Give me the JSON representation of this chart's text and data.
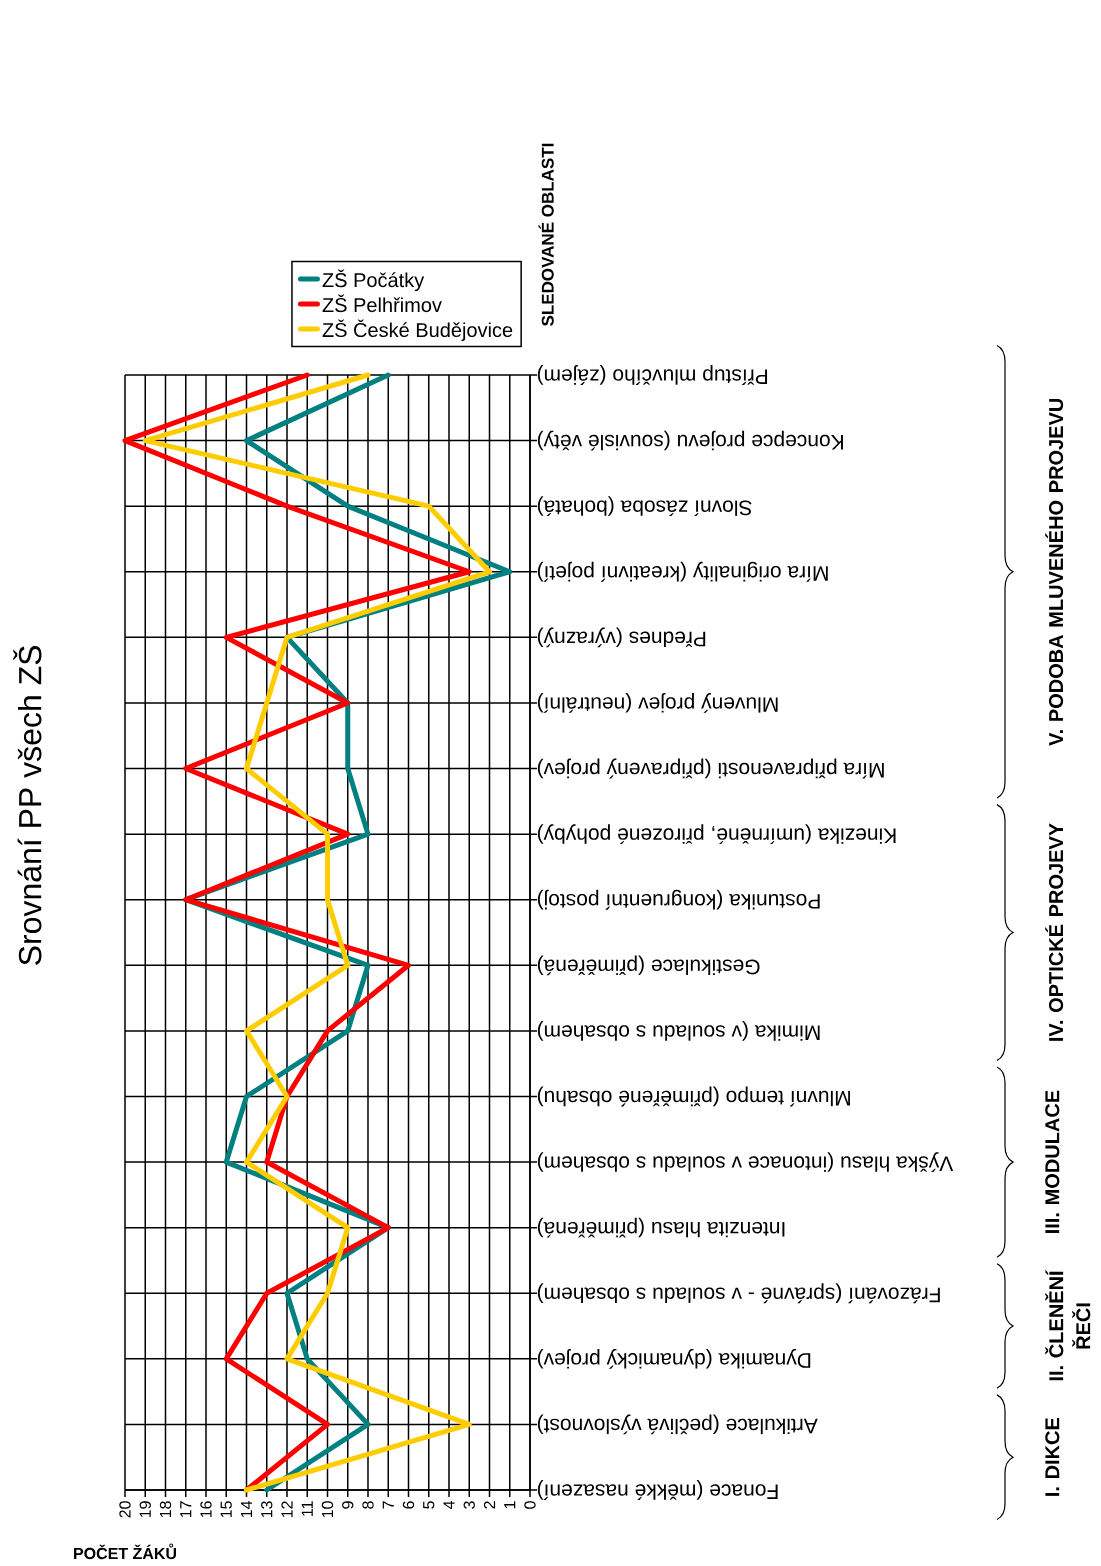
{
  "chart_data": {
    "type": "line",
    "orientation": "horizontal",
    "title": "Srovnání PP všech ZŠ",
    "xlabel": "POČET ŽÁKŮ",
    "ylabel": "SLEDOVANÉ OBLASTI",
    "categories": [
      "Přístup mluvčího (zájem)",
      "Koncepce projevu (souvislé věty)",
      "Slovní zásoba (bohatá)",
      "Míra originality (kreativní pojetí)",
      "Přednes (výrazný)",
      "Mluvený projev (neutrální)",
      "Míra připravenosti (připravený projev)",
      "Kinezika (umírněné, přirozené pohyby)",
      "Postunika (kongruentní postoj)",
      "Gestikulace (přiměřená)",
      "Mimika (v souladu s obsahem)",
      "Mluvní tempo (přiměřené obsahu)",
      "Výška hlasu (intonace v souladu s obsahem)",
      "Intenzita hlasu (přiměřená)",
      "Frázování (správné - v souladu s obsahem)",
      "Dynamika (dynamický projev)",
      "Artikulace (pečlivá výslovnost)",
      "Fonace (měkké nasazení)"
    ],
    "series": [
      {
        "name": "ZŠ Počátky",
        "color": "#008080",
        "values": [
          7,
          14,
          9,
          1,
          12,
          9,
          9,
          8,
          17,
          8,
          9,
          14,
          15,
          7,
          12,
          11,
          8,
          13
        ]
      },
      {
        "name": "ZŠ Pelhřimov",
        "color": "#ff0000",
        "values": [
          11,
          20,
          12,
          3,
          15,
          9,
          17,
          9,
          17,
          6,
          10,
          12,
          13,
          7,
          13,
          15,
          10,
          14
        ]
      },
      {
        "name": "ZŠ České Budějovice",
        "color": "#ffcc00",
        "values": [
          8,
          19,
          5,
          2,
          12,
          13,
          14,
          10,
          10,
          9,
          14,
          12,
          14,
          9,
          10,
          12,
          3,
          14
        ]
      }
    ],
    "xlim": [
      20,
      0
    ],
    "xticks": [
      20,
      19,
      18,
      17,
      16,
      15,
      14,
      13,
      12,
      11,
      10,
      9,
      8,
      7,
      6,
      5,
      4,
      3,
      2,
      1,
      0
    ],
    "grid": true,
    "legend": "top right",
    "annotations": [
      "I. DIKCE",
      "II. ČLENĚNÍ ŘEČI",
      "III. MODULACE",
      "IV. OPTICKÉ PROJEVY",
      "V. PODOBA MLUVENÉHO PROJEVU"
    ]
  }
}
